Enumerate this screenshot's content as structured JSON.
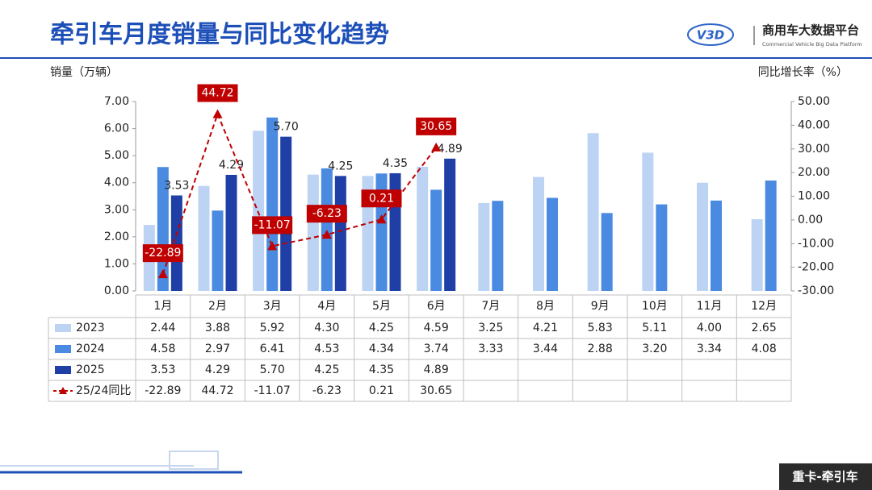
{
  "header": {
    "logo_mark": "V3D",
    "logo_name": "商用车大数据平台",
    "logo_subtitle": "Commercial Vehicle Big Data Platform"
  },
  "footer": {
    "tag": "重卡-牵引车"
  },
  "chart_data": {
    "type": "bar",
    "title": "牵引车月度销量与同比变化趋势",
    "y_label": "销量（万辆）",
    "y2_label": "同比增长率（%）",
    "categories": [
      "1月",
      "2月",
      "3月",
      "4月",
      "5月",
      "6月",
      "7月",
      "8月",
      "9月",
      "10月",
      "11月",
      "12月"
    ],
    "ylim": [
      0,
      7
    ],
    "yticks": [
      {
        "value": 0,
        "label": "0.00"
      },
      {
        "value": 1,
        "label": "1.00"
      },
      {
        "value": 2,
        "label": "2.00"
      },
      {
        "value": 3,
        "label": "3.00"
      },
      {
        "value": 4,
        "label": "4.00"
      },
      {
        "value": 5,
        "label": "5.00"
      },
      {
        "value": 6,
        "label": "6.00"
      },
      {
        "value": 7,
        "label": "7.00"
      }
    ],
    "y2lim": [
      -30,
      50
    ],
    "y2ticks": [
      {
        "value": -30,
        "label": "-30.00"
      },
      {
        "value": -20,
        "label": "-20.00"
      },
      {
        "value": -10,
        "label": "-10.00"
      },
      {
        "value": 0,
        "label": "0.00"
      },
      {
        "value": 10,
        "label": "10.00"
      },
      {
        "value": 20,
        "label": "20.00"
      },
      {
        "value": 30,
        "label": "30.00"
      },
      {
        "value": 40,
        "label": "40.00"
      },
      {
        "value": 50,
        "label": "50.00"
      }
    ],
    "series": [
      {
        "name": "2023",
        "color": "#bcd3f3",
        "values": [
          2.44,
          3.88,
          5.92,
          4.3,
          4.25,
          4.59,
          3.25,
          4.21,
          5.83,
          5.11,
          4.0,
          2.65
        ],
        "value_labels": [
          "2.44",
          "3.88",
          "5.92",
          "4.30",
          "4.25",
          "4.59",
          "3.25",
          "4.21",
          "5.83",
          "5.11",
          "4.00",
          "2.65"
        ]
      },
      {
        "name": "2024",
        "color": "#4a8ae0",
        "values": [
          4.58,
          2.97,
          6.41,
          4.53,
          4.34,
          3.74,
          3.33,
          3.44,
          2.88,
          3.2,
          3.34,
          4.08
        ],
        "value_labels": [
          "4.58",
          "2.97",
          "6.41",
          "4.53",
          "4.34",
          "3.74",
          "3.33",
          "3.44",
          "2.88",
          "3.20",
          "3.34",
          "4.08"
        ]
      },
      {
        "name": "2025",
        "color": "#1f3fa6",
        "values": [
          3.53,
          4.29,
          5.7,
          4.25,
          4.35,
          4.89,
          null,
          null,
          null,
          null,
          null,
          null
        ],
        "value_labels": [
          "3.53",
          "4.29",
          "5.70",
          "4.25",
          "4.35",
          "4.89",
          null,
          null,
          null,
          null,
          null,
          null
        ]
      },
      {
        "name": "25/24同比",
        "color": "#c00000",
        "type": "line",
        "axis": "y2",
        "values": [
          -22.89,
          44.72,
          -11.07,
          -6.23,
          0.21,
          30.65,
          null,
          null,
          null,
          null,
          null,
          null
        ]
      }
    ]
  }
}
